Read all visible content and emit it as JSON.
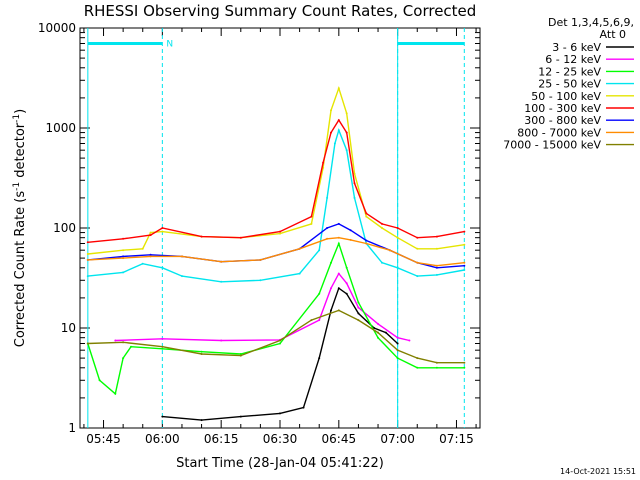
{
  "chart_data": {
    "type": "line",
    "title": "RHESSI Observing Summary Count Rates, Corrected",
    "xlabel": "Start Time (28-Jan-04 05:41:22)",
    "ylabel": "Corrected Count Rate (s",
    "ylabel_sup1": "-1",
    "ylabel_mid": " detector",
    "ylabel_sup2": "-1",
    "ylabel_end": ")",
    "y_scale": "log",
    "ylim": [
      1,
      10000
    ],
    "xlim": [
      "05:39:00",
      "07:21:00"
    ],
    "x_ticks": [
      "05:45",
      "06:00",
      "06:15",
      "06:30",
      "06:45",
      "07:00",
      "07:15"
    ],
    "y_ticks": [
      "1",
      "10",
      "100",
      "1000",
      "10000"
    ],
    "legend_header": [
      "Det 1,3,4,5,6,9,",
      "Att 0"
    ],
    "legend_position": "top-right, outside plot",
    "timestamp": "14-Oct-2021 15:51",
    "annotation": {
      "text": "N",
      "time": "06:00"
    },
    "night_markers": {
      "color": "#00e5ee",
      "dashed_lines": [
        "06:00",
        "07:00",
        "07:17"
      ],
      "solid_lines": [
        "05:41",
        "07:00"
      ],
      "bars": [
        [
          "05:41",
          "06:00"
        ],
        [
          "07:00",
          "07:17"
        ]
      ],
      "bar_level": 7000
    },
    "series": [
      {
        "name": "3 - 6 keV",
        "color": "#000000",
        "points": [
          [
            "06:00",
            1.3
          ],
          [
            "06:10",
            1.2
          ],
          [
            "06:20",
            1.3
          ],
          [
            "06:30",
            1.4
          ],
          [
            "06:36",
            1.6
          ],
          [
            "06:40",
            5
          ],
          [
            "06:43",
            15
          ],
          [
            "06:45",
            25
          ],
          [
            "06:47",
            22
          ],
          [
            "06:50",
            14
          ],
          [
            "06:54",
            10
          ],
          [
            "06:57",
            9
          ],
          [
            "07:00",
            7
          ]
        ]
      },
      {
        "name": "6 - 12 keV",
        "color": "#ff00ff",
        "points": [
          [
            "05:48",
            7.5
          ],
          [
            "06:00",
            7.8
          ],
          [
            "06:15",
            7.5
          ],
          [
            "06:30",
            7.6
          ],
          [
            "06:40",
            12
          ],
          [
            "06:43",
            25
          ],
          [
            "06:45",
            35
          ],
          [
            "06:47",
            28
          ],
          [
            "06:50",
            16
          ],
          [
            "06:55",
            11
          ],
          [
            "07:00",
            8
          ],
          [
            "07:03",
            7.5
          ]
        ]
      },
      {
        "name": "12 - 25 keV",
        "color": "#00ff00",
        "points": [
          [
            "05:41",
            7
          ],
          [
            "05:44",
            3
          ],
          [
            "05:48",
            2.2
          ],
          [
            "05:50",
            5
          ],
          [
            "05:52",
            6.5
          ],
          [
            "06:00",
            6.2
          ],
          [
            "06:10",
            5.8
          ],
          [
            "06:20",
            5.5
          ],
          [
            "06:30",
            7
          ],
          [
            "06:40",
            22
          ],
          [
            "06:43",
            45
          ],
          [
            "06:45",
            70
          ],
          [
            "06:47",
            40
          ],
          [
            "06:50",
            18
          ],
          [
            "06:55",
            8
          ],
          [
            "07:00",
            5
          ],
          [
            "07:05",
            4
          ],
          [
            "07:10",
            4
          ],
          [
            "07:17",
            4
          ]
        ]
      },
      {
        "name": "25 - 50 keV",
        "color": "#00e5ee",
        "points": [
          [
            "05:41",
            33
          ],
          [
            "05:50",
            36
          ],
          [
            "05:55",
            44
          ],
          [
            "06:00",
            40
          ],
          [
            "06:05",
            33
          ],
          [
            "06:15",
            29
          ],
          [
            "06:25",
            30
          ],
          [
            "06:35",
            35
          ],
          [
            "06:40",
            60
          ],
          [
            "06:42",
            200
          ],
          [
            "06:44",
            700
          ],
          [
            "06:45",
            950
          ],
          [
            "06:47",
            600
          ],
          [
            "06:49",
            200
          ],
          [
            "06:52",
            70
          ],
          [
            "06:56",
            45
          ],
          [
            "07:00",
            40
          ],
          [
            "07:05",
            33
          ],
          [
            "07:10",
            34
          ],
          [
            "07:17",
            38
          ]
        ]
      },
      {
        "name": "50 - 100 keV",
        "color": "#e5e500",
        "points": [
          [
            "05:41",
            55
          ],
          [
            "05:50",
            60
          ],
          [
            "05:55",
            62
          ],
          [
            "05:57",
            90
          ],
          [
            "06:00",
            92
          ],
          [
            "06:10",
            82
          ],
          [
            "06:20",
            80
          ],
          [
            "06:30",
            88
          ],
          [
            "06:38",
            110
          ],
          [
            "06:41",
            400
          ],
          [
            "06:43",
            1500
          ],
          [
            "06:45",
            2500
          ],
          [
            "06:47",
            1400
          ],
          [
            "06:49",
            350
          ],
          [
            "06:52",
            130
          ],
          [
            "06:56",
            100
          ],
          [
            "07:00",
            80
          ],
          [
            "07:05",
            62
          ],
          [
            "07:10",
            62
          ],
          [
            "07:17",
            68
          ]
        ]
      },
      {
        "name": "100 - 300 keV",
        "color": "#ff0000",
        "points": [
          [
            "05:41",
            72
          ],
          [
            "05:50",
            78
          ],
          [
            "05:57",
            85
          ],
          [
            "06:00",
            100
          ],
          [
            "06:10",
            82
          ],
          [
            "06:20",
            80
          ],
          [
            "06:30",
            92
          ],
          [
            "06:38",
            130
          ],
          [
            "06:41",
            450
          ],
          [
            "06:43",
            900
          ],
          [
            "06:45",
            1200
          ],
          [
            "06:47",
            900
          ],
          [
            "06:49",
            280
          ],
          [
            "06:52",
            140
          ],
          [
            "06:56",
            110
          ],
          [
            "07:00",
            100
          ],
          [
            "07:05",
            80
          ],
          [
            "07:10",
            82
          ],
          [
            "07:17",
            92
          ]
        ]
      },
      {
        "name": "300 - 800 keV",
        "color": "#0000ff",
        "points": [
          [
            "05:41",
            48
          ],
          [
            "05:50",
            52
          ],
          [
            "05:57",
            54
          ],
          [
            "06:05",
            52
          ],
          [
            "06:15",
            46
          ],
          [
            "06:25",
            48
          ],
          [
            "06:35",
            62
          ],
          [
            "06:42",
            100
          ],
          [
            "06:45",
            110
          ],
          [
            "06:48",
            95
          ],
          [
            "06:52",
            75
          ],
          [
            "06:58",
            60
          ],
          [
            "07:05",
            45
          ],
          [
            "07:10",
            40
          ],
          [
            "07:17",
            42
          ]
        ]
      },
      {
        "name": "800 - 7000 keV",
        "color": "#ff8c00",
        "points": [
          [
            "05:41",
            48
          ],
          [
            "05:50",
            50
          ],
          [
            "05:57",
            52
          ],
          [
            "06:05",
            52
          ],
          [
            "06:15",
            46
          ],
          [
            "06:25",
            48
          ],
          [
            "06:35",
            62
          ],
          [
            "06:42",
            78
          ],
          [
            "06:45",
            80
          ],
          [
            "06:48",
            76
          ],
          [
            "06:52",
            70
          ],
          [
            "06:58",
            60
          ],
          [
            "07:05",
            45
          ],
          [
            "07:10",
            42
          ],
          [
            "07:17",
            45
          ]
        ]
      },
      {
        "name": "7000 - 15000 keV",
        "color": "#808000",
        "points": [
          [
            "05:41",
            7
          ],
          [
            "05:50",
            7.2
          ],
          [
            "06:00",
            6.5
          ],
          [
            "06:10",
            5.5
          ],
          [
            "06:20",
            5.3
          ],
          [
            "06:30",
            7.5
          ],
          [
            "06:38",
            12
          ],
          [
            "06:45",
            15
          ],
          [
            "06:50",
            12
          ],
          [
            "06:55",
            9
          ],
          [
            "07:00",
            6
          ],
          [
            "07:05",
            5
          ],
          [
            "07:10",
            4.5
          ],
          [
            "07:17",
            4.5
          ]
        ]
      }
    ]
  }
}
